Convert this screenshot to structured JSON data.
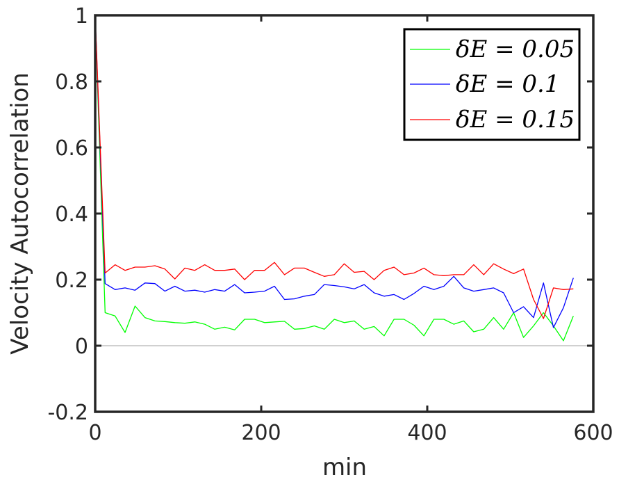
{
  "chart_data": {
    "type": "line",
    "xlabel": "min",
    "ylabel": "Velocity Autocorrelation",
    "xlim": [
      0,
      600
    ],
    "ylim": [
      -0.2,
      1
    ],
    "x_ticks": [
      "0",
      "200",
      "400",
      "600"
    ],
    "y_ticks": [
      "-0.2",
      "0",
      "0.2",
      "0.4",
      "0.6",
      "0.8",
      "1"
    ],
    "grid": false,
    "zero_line": true,
    "legend_position": "top-right",
    "series": [
      {
        "name": "δE = 0.05",
        "color": "#00ff00",
        "x": [
          0,
          12,
          24,
          36,
          48,
          60,
          72,
          84,
          96,
          108,
          120,
          132,
          144,
          156,
          168,
          180,
          192,
          204,
          216,
          228,
          240,
          252,
          264,
          276,
          288,
          300,
          312,
          324,
          336,
          348,
          360,
          372,
          384,
          396,
          408,
          420,
          432,
          444,
          456,
          468,
          480,
          492,
          504,
          516,
          528,
          540,
          552,
          564,
          576
        ],
        "values": [
          1.0,
          0.1,
          0.09,
          0.04,
          0.12,
          0.085,
          0.075,
          0.073,
          0.07,
          0.068,
          0.072,
          0.065,
          0.05,
          0.056,
          0.048,
          0.08,
          0.08,
          0.07,
          0.072,
          0.074,
          0.05,
          0.052,
          0.06,
          0.05,
          0.08,
          0.07,
          0.075,
          0.05,
          0.058,
          0.03,
          0.08,
          0.08,
          0.062,
          0.03,
          0.08,
          0.08,
          0.065,
          0.075,
          0.042,
          0.05,
          0.085,
          0.05,
          0.1,
          0.025,
          0.06,
          0.1,
          0.06,
          0.015,
          0.09
        ]
      },
      {
        "name": "δE = 0.1",
        "color": "#0000ff",
        "x": [
          0,
          12,
          24,
          36,
          48,
          60,
          72,
          84,
          96,
          108,
          120,
          132,
          144,
          156,
          168,
          180,
          192,
          204,
          216,
          228,
          240,
          252,
          264,
          276,
          288,
          300,
          312,
          324,
          336,
          348,
          360,
          372,
          384,
          396,
          408,
          420,
          432,
          444,
          456,
          468,
          480,
          492,
          504,
          516,
          528,
          540,
          552,
          564,
          576
        ],
        "values": [
          1.0,
          0.188,
          0.17,
          0.175,
          0.168,
          0.19,
          0.188,
          0.165,
          0.18,
          0.165,
          0.168,
          0.162,
          0.17,
          0.165,
          0.185,
          0.16,
          0.162,
          0.165,
          0.18,
          0.14,
          0.142,
          0.15,
          0.155,
          0.185,
          0.182,
          0.178,
          0.172,
          0.185,
          0.16,
          0.15,
          0.155,
          0.14,
          0.158,
          0.18,
          0.17,
          0.18,
          0.21,
          0.175,
          0.165,
          0.17,
          0.175,
          0.16,
          0.1,
          0.118,
          0.085,
          0.19,
          0.055,
          0.115,
          0.205
        ]
      },
      {
        "name": "δE = 0.15",
        "color": "#ff0000",
        "x": [
          0,
          12,
          24,
          36,
          48,
          60,
          72,
          84,
          96,
          108,
          120,
          132,
          144,
          156,
          168,
          180,
          192,
          204,
          216,
          228,
          240,
          252,
          264,
          276,
          288,
          300,
          312,
          324,
          336,
          348,
          360,
          372,
          384,
          396,
          408,
          420,
          432,
          444,
          456,
          468,
          480,
          492,
          504,
          516,
          528,
          540,
          552,
          564,
          576
        ],
        "values": [
          1.0,
          0.22,
          0.245,
          0.228,
          0.238,
          0.238,
          0.242,
          0.232,
          0.202,
          0.235,
          0.228,
          0.245,
          0.228,
          0.228,
          0.232,
          0.2,
          0.228,
          0.228,
          0.252,
          0.215,
          0.235,
          0.235,
          0.222,
          0.21,
          0.215,
          0.248,
          0.222,
          0.225,
          0.2,
          0.228,
          0.238,
          0.215,
          0.22,
          0.235,
          0.215,
          0.212,
          0.215,
          0.215,
          0.245,
          0.215,
          0.248,
          0.232,
          0.218,
          0.232,
          0.14,
          0.082,
          0.175,
          0.17,
          0.172
        ]
      }
    ]
  }
}
